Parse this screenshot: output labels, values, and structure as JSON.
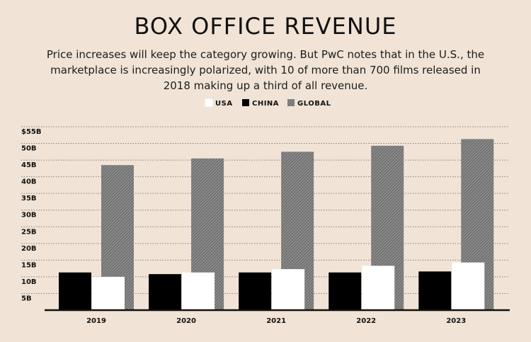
{
  "title": "BOX OFFICE REVENUE",
  "subtitle": "Price increases will keep the category growing. But PwC notes that in the U.S., the marketplace is increasingly polarized, with 10 of more than 700 films released in 2018 making up a third of all revenue.",
  "colors": {
    "background": "#f1e4d6",
    "usa": "#ffffff",
    "china": "#000000",
    "global": "#7d7d7d"
  },
  "chart_data": {
    "type": "bar",
    "title": "BOX OFFICE REVENUE",
    "categories": [
      "2019",
      "2020",
      "2021",
      "2022",
      "2023"
    ],
    "series": [
      {
        "name": "CHINA",
        "values": [
          11.3,
          10.8,
          11.3,
          11.3,
          11.6
        ]
      },
      {
        "name": "USA",
        "values": [
          10.0,
          11.3,
          12.3,
          13.3,
          14.3
        ]
      },
      {
        "name": "GLOBAL",
        "values": [
          43.5,
          45.5,
          47.5,
          49.3,
          51.3
        ]
      }
    ],
    "legend": [
      "USA",
      "CHINA",
      "GLOBAL"
    ],
    "legend_position": "top-center",
    "ylim": [
      0,
      55
    ],
    "yticks": [
      {
        "value": 5,
        "label": "5B"
      },
      {
        "value": 10,
        "label": "10B"
      },
      {
        "value": 15,
        "label": "15B"
      },
      {
        "value": 20,
        "label": "20B"
      },
      {
        "value": 25,
        "label": "25B"
      },
      {
        "value": 30,
        "label": "30B"
      },
      {
        "value": 35,
        "label": "35B"
      },
      {
        "value": 40,
        "label": "40B"
      },
      {
        "value": 45,
        "label": "45B"
      },
      {
        "value": 50,
        "label": "50B"
      },
      {
        "value": 55,
        "label": "$55B"
      }
    ],
    "grid": true,
    "xlabel": "",
    "ylabel": ""
  }
}
